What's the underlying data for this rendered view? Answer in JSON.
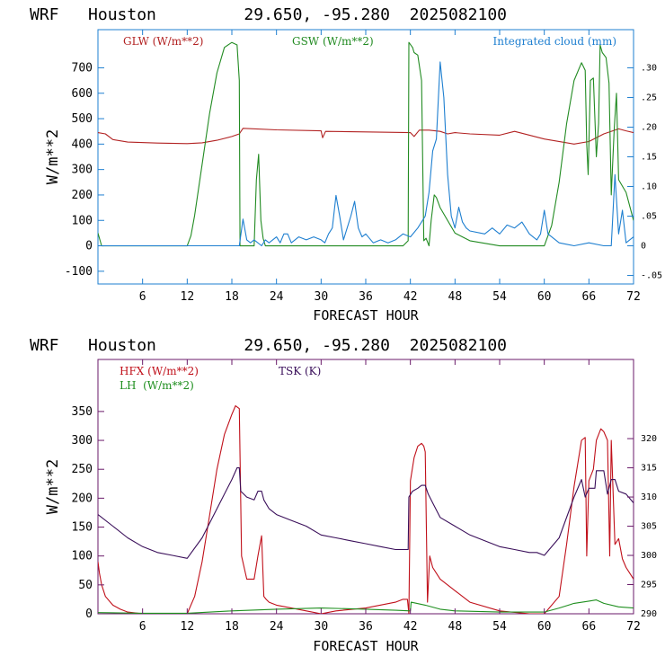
{
  "colors": {
    "glw": "#b22222",
    "gsw": "#228b22",
    "cloud": "#1e7fd0",
    "hfx": "#c0101a",
    "lh": "#1f8f1f",
    "tsk": "#3a0f5a",
    "top_axis": "#1e7fd0",
    "bottom_axis": "#6a1a6a"
  },
  "chart_data": [
    {
      "type": "line",
      "title": "WRF   Houston         29.650, -95.280  2025082100",
      "xlabel": "FORECAST HOUR",
      "ylabel": "W/m**2",
      "xlim": [
        0,
        72
      ],
      "ylim": [
        -150,
        850
      ],
      "y2lim": [
        -0.0643,
        0.3643
      ],
      "xticks": [
        "6",
        "12",
        "18",
        "24",
        "30",
        "36",
        "42",
        "48",
        "54",
        "60",
        "66",
        "72"
      ],
      "yticks": [
        "-100",
        "0",
        "100",
        "200",
        "300",
        "400",
        "500",
        "600",
        "700"
      ],
      "y2ticks": [
        "-.05",
        "0",
        ".05",
        ".10",
        ".15",
        ".20",
        ".25",
        ".30"
      ],
      "legend": [
        "GLW (W/m**2)",
        "GSW (W/m**2)",
        "Integrated cloud (mm)"
      ],
      "series": [
        {
          "name": "GLW (W/m**2)",
          "axis": "left",
          "x": [
            0,
            1,
            2,
            4,
            8,
            12,
            14,
            16,
            18,
            19,
            19.5,
            24,
            30,
            30.2,
            30.6,
            36,
            42,
            42.5,
            43.2,
            44.5,
            46,
            47,
            48,
            50,
            54,
            56,
            60,
            64,
            66,
            68,
            70,
            71,
            72
          ],
          "y": [
            445,
            440,
            418,
            408,
            404,
            402,
            405,
            415,
            430,
            440,
            462,
            456,
            452,
            425,
            450,
            448,
            445,
            430,
            455,
            455,
            450,
            440,
            445,
            440,
            435,
            450,
            420,
            400,
            410,
            440,
            460,
            452,
            445
          ]
        },
        {
          "name": "GSW (W/m**2)",
          "axis": "left",
          "x": [
            0,
            0.5,
            1,
            12,
            12.5,
            13,
            14,
            15,
            16,
            17,
            18,
            18.7,
            19,
            19.1,
            20,
            21,
            21.3,
            21.6,
            21.9,
            22.2,
            22.5,
            23,
            24,
            30,
            36,
            40,
            41,
            41.7,
            41.8,
            42.3,
            42.5,
            43,
            43.5,
            43.8,
            44.1,
            44.5,
            44.8,
            45.2,
            45.5,
            46,
            48,
            50,
            54,
            58,
            60,
            61,
            62,
            63,
            64,
            65,
            65.5,
            65.7,
            65.9,
            66.2,
            66.6,
            67,
            67.3,
            67.5,
            67.8,
            68.3,
            68.7,
            69,
            69.4,
            69.7,
            70,
            71,
            72
          ],
          "y": [
            50,
            0,
            0,
            0,
            40,
            120,
            320,
            520,
            680,
            780,
            800,
            790,
            650,
            0,
            0,
            0,
            260,
            360,
            100,
            30,
            0,
            0,
            0,
            0,
            0,
            0,
            0,
            20,
            800,
            780,
            760,
            750,
            650,
            20,
            30,
            0,
            100,
            200,
            190,
            150,
            50,
            20,
            0,
            0,
            0,
            80,
            250,
            480,
            650,
            720,
            690,
            400,
            280,
            650,
            660,
            350,
            480,
            790,
            760,
            740,
            640,
            200,
            460,
            600,
            260,
            210,
            100
          ]
        },
        {
          "name": "Integrated cloud (mm)",
          "axis": "right",
          "x": [
            0,
            19,
            19.5,
            20,
            20.5,
            21,
            22,
            22.5,
            23,
            24,
            24.5,
            25,
            25.5,
            26,
            27,
            28,
            29,
            30,
            30.5,
            31,
            31.5,
            32,
            32.5,
            33,
            34,
            34.5,
            35,
            35.5,
            36,
            37,
            38,
            39,
            40,
            41,
            42,
            43,
            44,
            44.5,
            45,
            45.5,
            46,
            46.5,
            47,
            47.5,
            48,
            48.5,
            49,
            49.5,
            50,
            52,
            53,
            54,
            55,
            56,
            57,
            58,
            59,
            59.5,
            60,
            60.5,
            61,
            62,
            64,
            66,
            68,
            69,
            69.5,
            70,
            70.5,
            71,
            72
          ],
          "y": [
            0,
            0,
            0.045,
            0.01,
            0.005,
            0.01,
            0,
            0.01,
            0.005,
            0.015,
            0.005,
            0.02,
            0.02,
            0.005,
            0.015,
            0.01,
            0.015,
            0.01,
            0.005,
            0.02,
            0.03,
            0.085,
            0.05,
            0.01,
            0.05,
            0.075,
            0.03,
            0.015,
            0.02,
            0.005,
            0.01,
            0.005,
            0.01,
            0.02,
            0.015,
            0.03,
            0.05,
            0.09,
            0.16,
            0.18,
            0.31,
            0.25,
            0.12,
            0.05,
            0.03,
            0.065,
            0.04,
            0.03,
            0.025,
            0.02,
            0.03,
            0.02,
            0.035,
            0.03,
            0.04,
            0.02,
            0.01,
            0.02,
            0.06,
            0.02,
            0.015,
            0.005,
            0,
            0.005,
            0,
            0,
            0.12,
            0.02,
            0.06,
            0.005,
            0.015
          ]
        }
      ]
    },
    {
      "type": "line",
      "title": "WRF   Houston         29.650, -95.280  2025082100",
      "xlabel": "FORECAST HOUR",
      "ylabel": "W/m**2",
      "xlim": [
        0,
        72
      ],
      "ylim": [
        0,
        440
      ],
      "y2lim": [
        290,
        333.56
      ],
      "xticks": [
        "6",
        "12",
        "18",
        "24",
        "30",
        "36",
        "42",
        "48",
        "54",
        "60",
        "66",
        "72"
      ],
      "yticks": [
        "0",
        "50",
        "100",
        "150",
        "200",
        "250",
        "300",
        "350"
      ],
      "y2ticks": [
        "290",
        "295",
        "300",
        "305",
        "310",
        "315",
        "320"
      ],
      "legend": [
        "HFX (W/m**2)",
        "LH  (W/m**2)",
        "TSK (K)"
      ],
      "series": [
        {
          "name": "HFX (W/m**2)",
          "axis": "left",
          "x": [
            0,
            0.2,
            0.5,
            1,
            2,
            3,
            4,
            6,
            12,
            13,
            14,
            15,
            16,
            17,
            18,
            18.5,
            19,
            19.3,
            20,
            21,
            21.5,
            22,
            22.3,
            22.6,
            23,
            24,
            26,
            28,
            30,
            32,
            36,
            40,
            41,
            41.6,
            41.8,
            42,
            42.5,
            43,
            43.5,
            43.8,
            44,
            44.3,
            44.6,
            45,
            46,
            48,
            50,
            54,
            58,
            60,
            62,
            63,
            64,
            65,
            65.5,
            65.7,
            66,
            66.6,
            67,
            67.3,
            67.6,
            68,
            68.5,
            68.8,
            69,
            69.5,
            70,
            70.5,
            71,
            72
          ],
          "y": [
            90,
            70,
            50,
            30,
            15,
            8,
            3,
            0,
            0,
            30,
            90,
            170,
            250,
            310,
            345,
            360,
            355,
            100,
            60,
            60,
            100,
            135,
            30,
            25,
            20,
            15,
            10,
            5,
            0,
            5,
            10,
            20,
            25,
            25,
            0,
            230,
            270,
            290,
            295,
            290,
            280,
            20,
            100,
            80,
            60,
            40,
            20,
            5,
            0,
            0,
            30,
            120,
            220,
            300,
            305,
            100,
            230,
            250,
            300,
            310,
            320,
            315,
            300,
            100,
            300,
            120,
            130,
            95,
            80,
            60
          ]
        },
        {
          "name": "LH  (W/m**2)",
          "axis": "left",
          "x": [
            0,
            6,
            12,
            18,
            24,
            30,
            36,
            40,
            42,
            42.1,
            44,
            46,
            48,
            54,
            60,
            62,
            64,
            66,
            67,
            68,
            70,
            72
          ],
          "y": [
            2,
            1,
            1,
            5,
            8,
            10,
            8,
            6,
            5,
            20,
            15,
            8,
            5,
            3,
            3,
            10,
            18,
            22,
            24,
            18,
            12,
            10
          ]
        },
        {
          "name": "TSK (K)",
          "axis": "right",
          "x": [
            0,
            2,
            4,
            6,
            8,
            10,
            12,
            14,
            16,
            18,
            18.7,
            19,
            19.2,
            20,
            21,
            21.5,
            22,
            22.3,
            23,
            24,
            26,
            28,
            30,
            32,
            34,
            36,
            38,
            40,
            41.7,
            41.8,
            42.3,
            43,
            43.5,
            44,
            44.4,
            45,
            46,
            48,
            50,
            52,
            54,
            56,
            58,
            59,
            60,
            62,
            64,
            65,
            65.5,
            66,
            66.8,
            67,
            67.5,
            68,
            68.5,
            69,
            69.5,
            70,
            71,
            72
          ],
          "y": [
            307,
            305,
            303,
            301.5,
            300.5,
            300,
            299.5,
            303,
            308,
            313,
            315,
            315,
            311,
            310,
            309.5,
            311,
            311,
            309.5,
            308,
            307,
            306,
            305,
            303.5,
            303,
            302.5,
            302,
            301.5,
            301,
            301,
            310,
            311,
            311.5,
            312,
            312,
            310.5,
            309,
            306.5,
            305,
            303.5,
            302.5,
            301.5,
            301,
            300.5,
            300.5,
            300,
            303,
            310,
            313,
            310,
            311.5,
            311.5,
            314.5,
            314.5,
            314.5,
            310.5,
            313,
            313,
            311,
            310.5,
            309
          ]
        }
      ]
    }
  ]
}
